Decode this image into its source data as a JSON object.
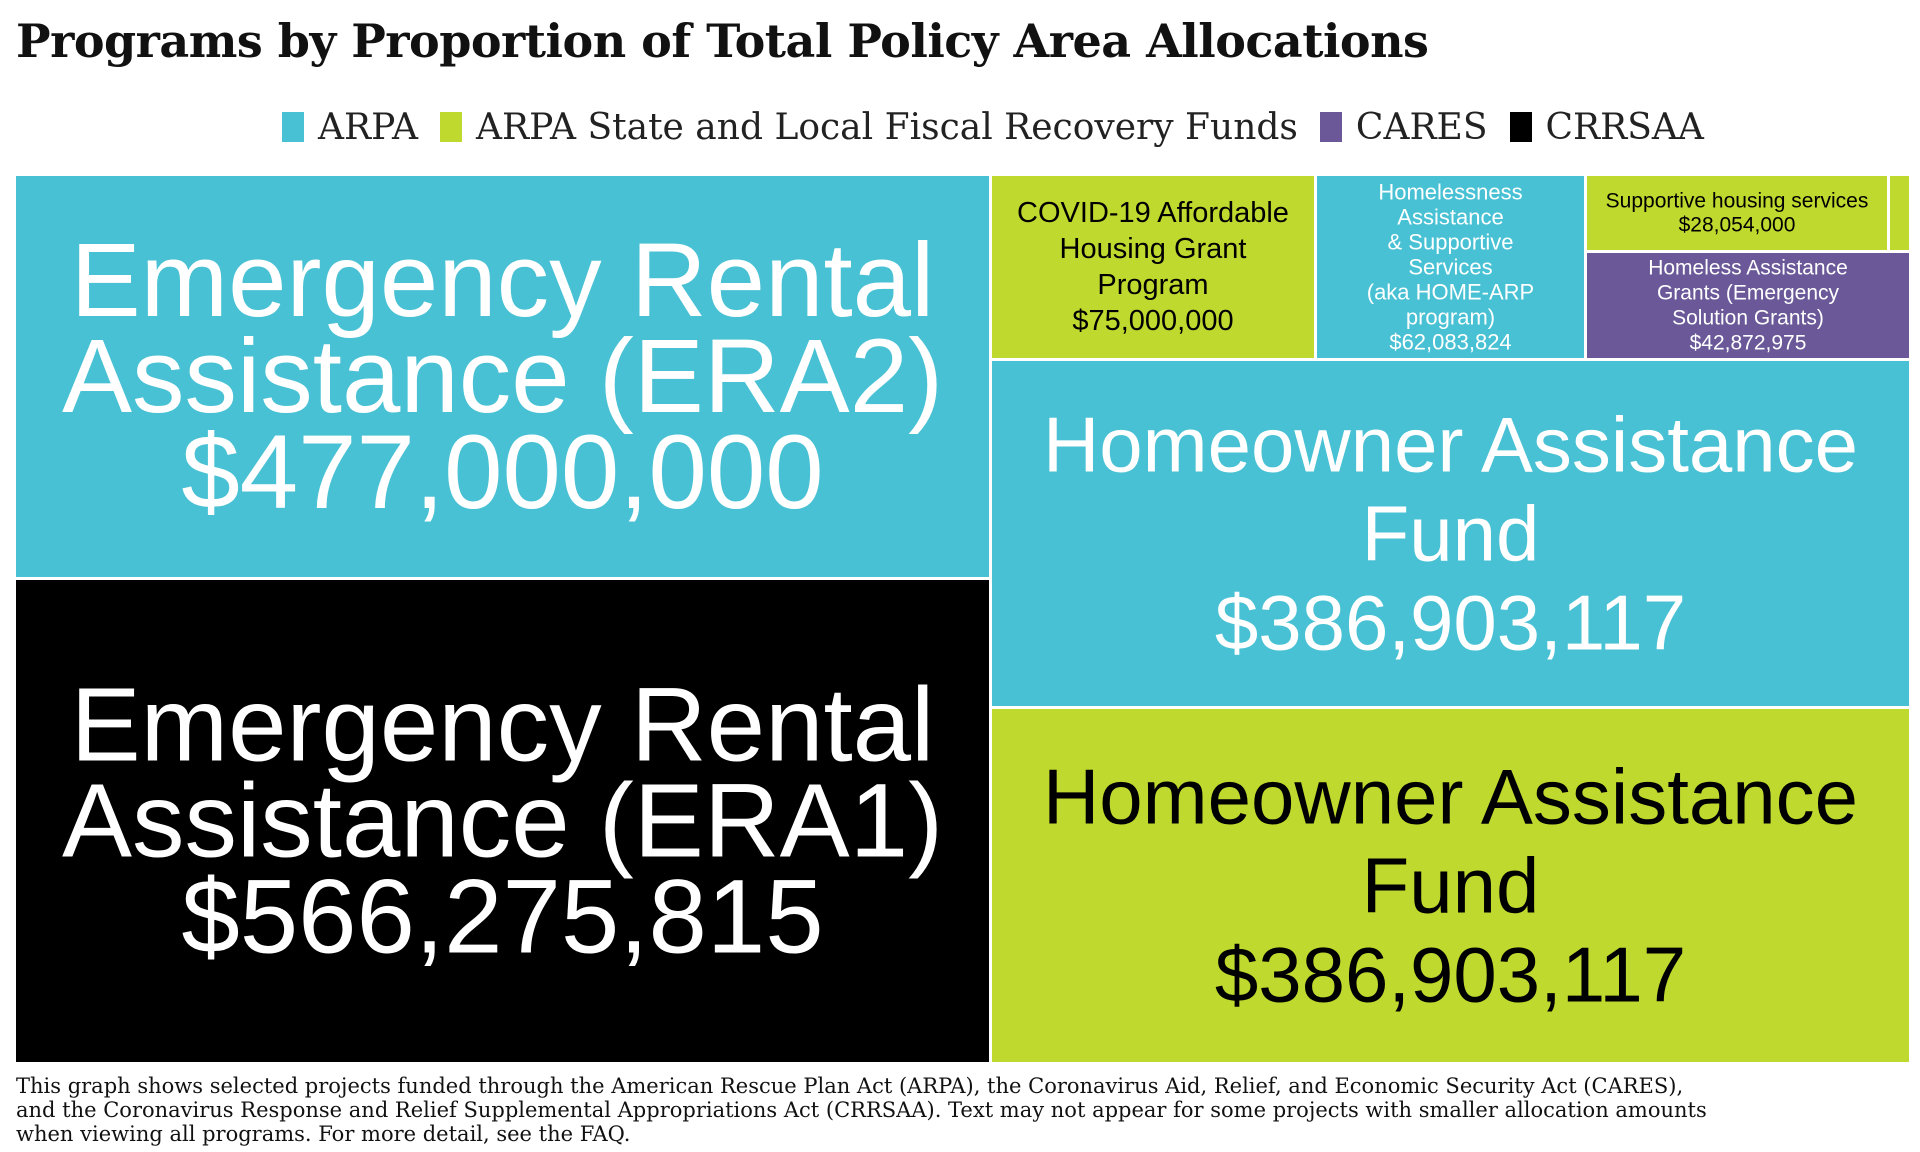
{
  "title": "Programs by Proportion of Total Policy Area Allocations",
  "legend": [
    {
      "label": "ARPA",
      "color": "#47c1d3"
    },
    {
      "label": "ARPA State and Local Fiscal Recovery Funds",
      "color": "#bfd92e"
    },
    {
      "label": "CARES",
      "color": "#6a5898"
    },
    {
      "label": "CRRSAA",
      "color": "#000000"
    }
  ],
  "chart_data": {
    "type": "treemap",
    "title": "Programs by Proportion of Total Policy Area Allocations",
    "items": [
      {
        "lines": [
          "Emergency Rental",
          "Assistance (ERA2)"
        ],
        "value_label": "$477,000,000",
        "value": 477000000,
        "group": "ARPA"
      },
      {
        "lines": [
          "Emergency Rental",
          "Assistance (ERA1)"
        ],
        "value_label": "$566,275,815",
        "value": 566275815,
        "group": "CRRSAA"
      },
      {
        "lines": [
          "COVID-19 Affordable",
          "Housing Grant",
          "Program"
        ],
        "value_label": "$75,000,000",
        "value": 75000000,
        "group": "ARPA State and Local Fiscal Recovery Funds"
      },
      {
        "lines": [
          "Homelessness",
          "Assistance",
          "& Supportive",
          "Services",
          "(aka HOME-ARP",
          "program)"
        ],
        "value_label": "$62,083,824",
        "value": 62083824,
        "group": "ARPA"
      },
      {
        "lines": [
          "Supportive housing services"
        ],
        "value_label": "$28,054,000",
        "value": 28054000,
        "group": "ARPA State and Local Fiscal Recovery Funds"
      },
      {
        "lines": [],
        "value_label": "",
        "value": null,
        "group": "ARPA State and Local Fiscal Recovery Funds"
      },
      {
        "lines": [
          "Homeless Assistance",
          "Grants (Emergency",
          "Solution Grants)"
        ],
        "value_label": "$42,872,975",
        "value": 42872975,
        "group": "CARES"
      },
      {
        "lines": [
          "Homeowner Assistance",
          "Fund"
        ],
        "value_label": "$386,903,117",
        "value": 386903117,
        "group": "ARPA"
      },
      {
        "lines": [
          "Homeowner Assistance",
          "Fund"
        ],
        "value_label": "$386,903,117",
        "value": 386903117,
        "group": "ARPA State and Local Fiscal Recovery Funds"
      }
    ]
  },
  "footnote": "This graph shows selected projects funded through the American Rescue Plan Act (ARPA), the Coronavirus Aid, Relief, and Economic Security Act (CARES),\nand the Coronavirus Response and Relief Supplemental Appropriations Act (CRRSAA). Text may not appear for some projects with smaller allocation amounts\n when viewing all programs. For more detail, see the FAQ."
}
